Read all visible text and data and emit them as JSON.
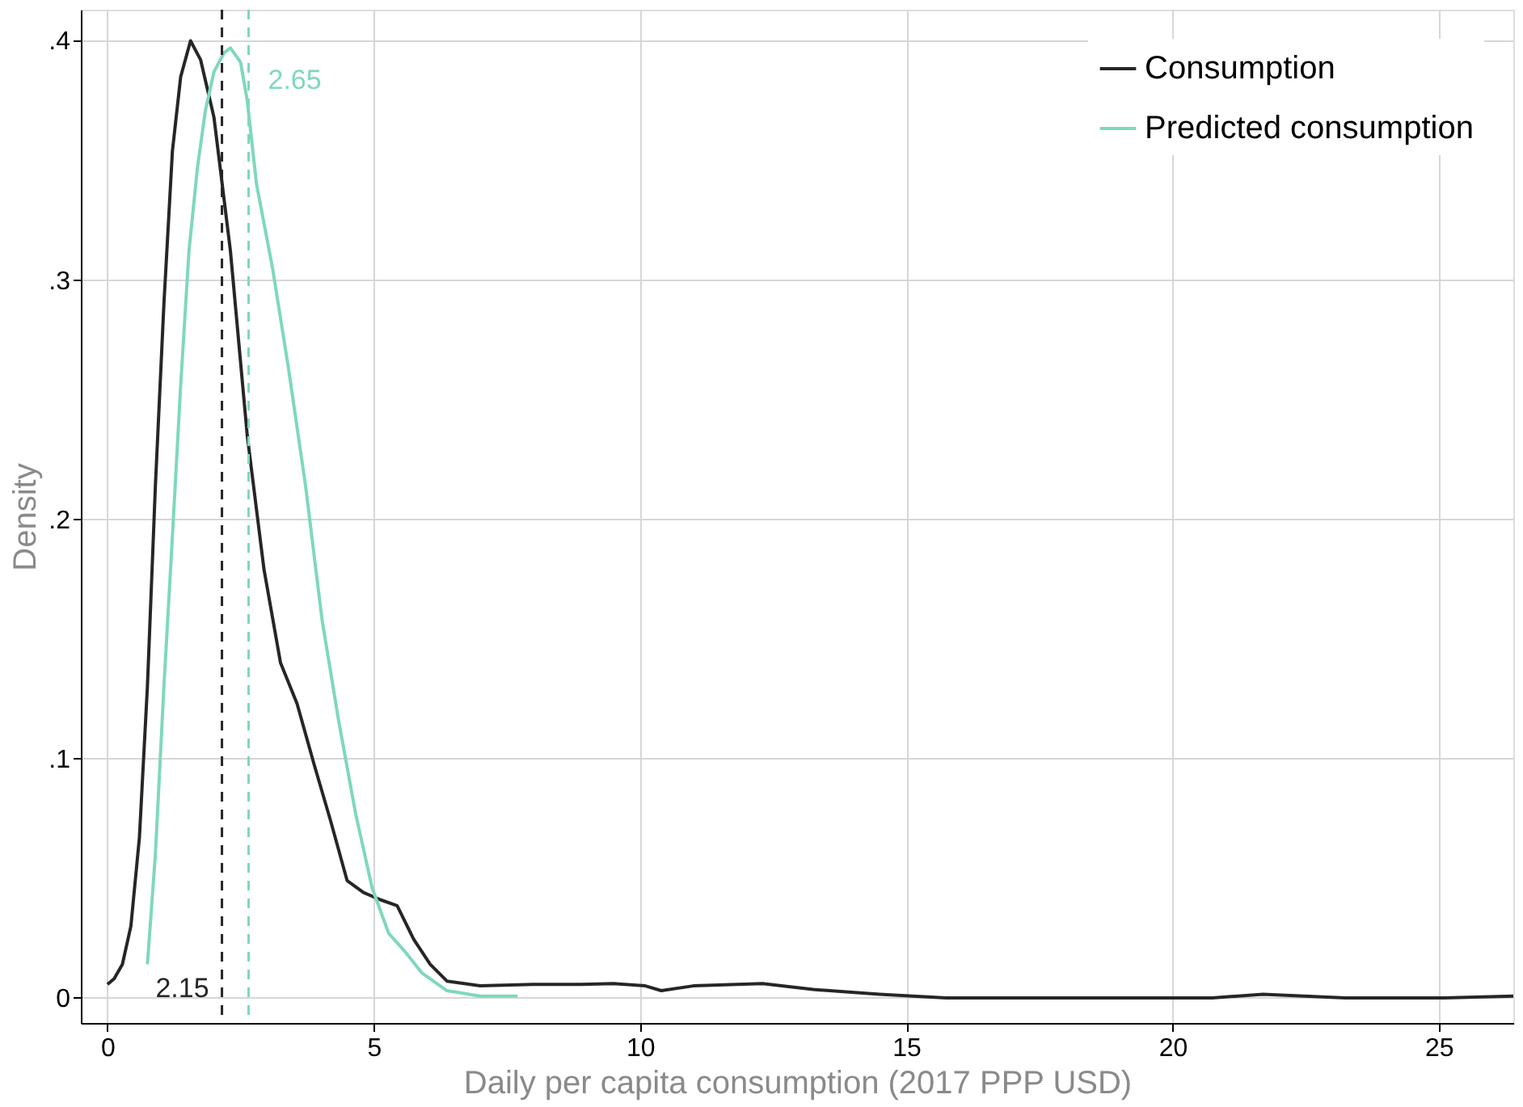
{
  "chart_data": {
    "type": "line",
    "xlabel": "Daily per capita consumption (2017 PPP USD)",
    "ylabel": "Density",
    "xlim": [
      -0.5,
      26.4
    ],
    "xticks": [
      0,
      5,
      10,
      15,
      20,
      25
    ],
    "ylim": [
      -0.0105,
      0.413
    ],
    "yticks": [
      0,
      {
        "value": 0.1,
        "label": ".1"
      },
      {
        "value": 0.2,
        "label": ".2"
      },
      {
        "value": 0.3,
        "label": ".3"
      },
      {
        "value": 0.4,
        "label": ".4"
      }
    ],
    "grid": true,
    "legend": "top right",
    "line_style": "solid",
    "marker": "none",
    "series": [
      {
        "name": "Consumption",
        "color": "#262626",
        "x": [
          0,
          0.125,
          0.28,
          0.44,
          0.6,
          0.75,
          0.9,
          1.06,
          1.22,
          1.375,
          1.56,
          1.75,
          2.0,
          2.31,
          2.625,
          2.94,
          3.25,
          3.56,
          3.875,
          4.19,
          4.5,
          4.81,
          5.125,
          5.44,
          5.75,
          6.06,
          6.375,
          7.0,
          8.0,
          8.9,
          9.5,
          10.1,
          10.4,
          11.0,
          12.3,
          13.25,
          14.5,
          15.75,
          18.9,
          20.75,
          21.7,
          23.25,
          25.1,
          26.4
        ],
        "values": [
          0.0056,
          0.008,
          0.014,
          0.03,
          0.067,
          0.13,
          0.214,
          0.29,
          0.354,
          0.385,
          0.4,
          0.392,
          0.368,
          0.312,
          0.235,
          0.179,
          0.14,
          0.123,
          0.098,
          0.074,
          0.049,
          0.044,
          0.041,
          0.0385,
          0.0245,
          0.014,
          0.007,
          0.005,
          0.0056,
          0.0056,
          0.006,
          0.005,
          0.003,
          0.005,
          0.006,
          0.0035,
          0.0015,
          0,
          0,
          0,
          0.0015,
          0,
          0,
          0.0007
        ]
      },
      {
        "name": "Predicted consumption",
        "color": "#7fd8bb",
        "x": [
          0.75,
          0.9,
          1.06,
          1.22,
          1.375,
          1.53,
          1.69,
          1.84,
          2.0,
          2.19,
          2.31,
          2.5,
          2.625,
          2.8,
          3.1,
          3.4,
          3.72,
          4.03,
          4.34,
          4.66,
          4.97,
          5.28,
          5.6,
          5.9,
          6.375,
          7.0,
          7.7
        ],
        "values": [
          0.014,
          0.06,
          0.13,
          0.193,
          0.256,
          0.312,
          0.347,
          0.371,
          0.387,
          0.395,
          0.397,
          0.391,
          0.375,
          0.34,
          0.305,
          0.263,
          0.214,
          0.158,
          0.116,
          0.077,
          0.046,
          0.027,
          0.019,
          0.0105,
          0.003,
          0.0007,
          0.0007
        ]
      }
    ],
    "ref_lines": [
      {
        "axis": "x",
        "value": 2.15,
        "label": "2.15",
        "color": "#262626",
        "line_style": "dashed"
      },
      {
        "axis": "x",
        "value": 2.65,
        "label": "2.65",
        "color": "#7fd8bb",
        "line_style": "dashed"
      }
    ]
  }
}
